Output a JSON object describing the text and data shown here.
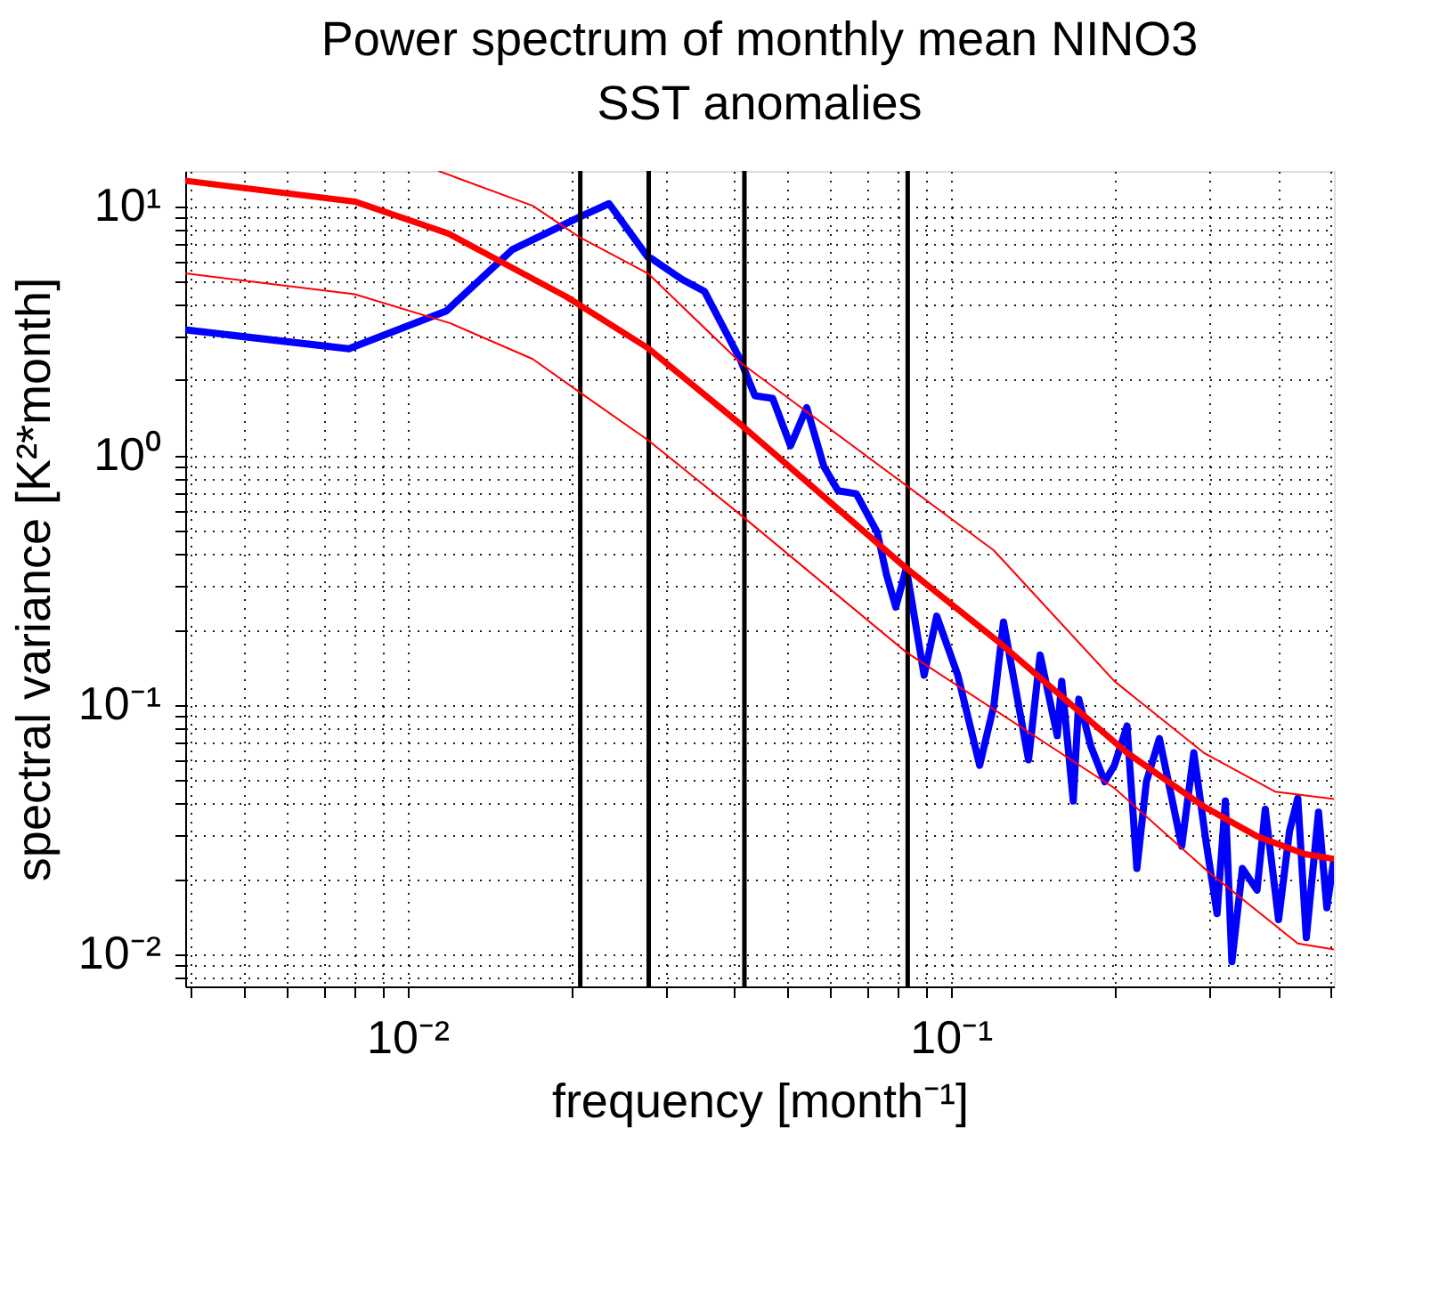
{
  "chart_data": {
    "type": "line",
    "title": "Power spectrum of monthly mean NINO3\nSST anomalies",
    "xlabel": "frequency [month⁻¹]",
    "ylabel": "spectral variance [K²*month]",
    "log": "xy",
    "grid": true,
    "line_style": "solid",
    "xlim": [
      0.0039,
      0.507
    ],
    "ylim": [
      0.0074,
      13.8
    ],
    "xticks": [
      {
        "value": 0.004,
        "label": null
      },
      {
        "value": 0.005,
        "label": null
      },
      {
        "value": 0.006,
        "label": null
      },
      {
        "value": 0.007,
        "label": null
      },
      {
        "value": 0.008,
        "label": null
      },
      {
        "value": 0.009,
        "label": null
      },
      {
        "value": 0.01,
        "label": "10⁻²"
      },
      {
        "value": 0.02,
        "label": null
      },
      {
        "value": 0.03,
        "label": null
      },
      {
        "value": 0.04,
        "label": null
      },
      {
        "value": 0.05,
        "label": null
      },
      {
        "value": 0.06,
        "label": null
      },
      {
        "value": 0.07,
        "label": null
      },
      {
        "value": 0.08,
        "label": null
      },
      {
        "value": 0.09,
        "label": null
      },
      {
        "value": 0.1,
        "label": "10⁻¹"
      },
      {
        "value": 0.2,
        "label": null
      },
      {
        "value": 0.3,
        "label": null
      },
      {
        "value": 0.4,
        "label": null
      },
      {
        "value": 0.5,
        "label": null
      }
    ],
    "yticks": [
      {
        "value": 0.008,
        "label": null
      },
      {
        "value": 0.009,
        "label": null
      },
      {
        "value": 0.01,
        "label": "10⁻²"
      },
      {
        "value": 0.02,
        "label": null
      },
      {
        "value": 0.03,
        "label": null
      },
      {
        "value": 0.04,
        "label": null
      },
      {
        "value": 0.05,
        "label": null
      },
      {
        "value": 0.06,
        "label": null
      },
      {
        "value": 0.07,
        "label": null
      },
      {
        "value": 0.08,
        "label": null
      },
      {
        "value": 0.09,
        "label": null
      },
      {
        "value": 0.1,
        "label": "10⁻¹"
      },
      {
        "value": 0.2,
        "label": null
      },
      {
        "value": 0.3,
        "label": null
      },
      {
        "value": 0.4,
        "label": null
      },
      {
        "value": 0.5,
        "label": null
      },
      {
        "value": 0.6,
        "label": null
      },
      {
        "value": 0.7,
        "label": null
      },
      {
        "value": 0.8,
        "label": null
      },
      {
        "value": 0.9,
        "label": null
      },
      {
        "value": 1,
        "label": "10⁰"
      },
      {
        "value": 2,
        "label": null
      },
      {
        "value": 3,
        "label": null
      },
      {
        "value": 4,
        "label": null
      },
      {
        "value": 5,
        "label": null
      },
      {
        "value": 6,
        "label": null
      },
      {
        "value": 7,
        "label": null
      },
      {
        "value": 8,
        "label": null
      },
      {
        "value": 9,
        "label": null
      },
      {
        "value": 10,
        "label": "10¹"
      }
    ],
    "ref_lines": [
      {
        "axis": "x",
        "value": 0.0208,
        "color": "#000000"
      },
      {
        "axis": "x",
        "value": 0.0278,
        "color": "#000000"
      },
      {
        "axis": "x",
        "value": 0.0417,
        "color": "#000000"
      },
      {
        "axis": "x",
        "value": 0.0833,
        "color": "#000000"
      }
    ],
    "series": [
      {
        "color": "#0000ff",
        "x": [
          0.0039,
          0.0078,
          0.0118,
          0.0156,
          0.0208,
          0.0235,
          0.0277,
          0.0281,
          0.032,
          0.0352,
          0.041,
          0.0436,
          0.047,
          0.0507,
          0.0543,
          0.0584,
          0.062,
          0.067,
          0.0732,
          0.0761,
          0.0792,
          0.0828,
          0.0893,
          0.0942,
          0.103,
          0.113,
          0.12,
          0.125,
          0.139,
          0.146,
          0.157,
          0.16,
          0.168,
          0.172,
          0.181,
          0.192,
          0.2,
          0.211,
          0.22,
          0.229,
          0.242,
          0.254,
          0.266,
          0.28,
          0.295,
          0.309,
          0.32,
          0.329,
          0.344,
          0.366,
          0.379,
          0.401,
          0.42,
          0.435,
          0.451,
          0.475,
          0.492,
          0.507
        ],
        "values": [
          3.18,
          2.67,
          3.79,
          6.67,
          9.04,
          10.2,
          6.22,
          6.15,
          5.07,
          4.54,
          2.41,
          1.73,
          1.69,
          1.09,
          1.55,
          0.9,
          0.72,
          0.7,
          0.49,
          0.333,
          0.246,
          0.352,
          0.131,
          0.226,
          0.131,
          0.057,
          0.099,
          0.214,
          0.06,
          0.158,
          0.075,
          0.124,
          0.041,
          0.105,
          0.068,
          0.049,
          0.057,
          0.082,
          0.022,
          0.049,
          0.073,
          0.044,
          0.027,
          0.064,
          0.028,
          0.0145,
          0.041,
          0.0093,
          0.022,
          0.018,
          0.038,
          0.0137,
          0.031,
          0.042,
          0.0116,
          0.037,
          0.0153,
          0.024
        ]
      },
      {
        "color": "#ff0000",
        "x": [
          0.0039,
          0.008,
          0.0119,
          0.0196,
          0.0277,
          0.041,
          0.0828,
          0.121,
          0.211,
          0.292,
          0.366,
          0.449,
          0.507
        ],
        "values": [
          12.6,
          10.4,
          7.74,
          4.32,
          2.69,
          1.33,
          0.352,
          0.182,
          0.064,
          0.039,
          0.0296,
          0.0251,
          0.024
        ]
      },
      {
        "color": "#ff0000",
        "x": [
          0.0114,
          0.017,
          0.0208,
          0.0277,
          0.041,
          0.12,
          0.2,
          0.292,
          0.395,
          0.507
        ],
        "values": [
          13.8,
          10.0,
          7.45,
          5.36,
          2.35,
          0.415,
          0.124,
          0.064,
          0.0447,
          0.0418
        ]
      },
      {
        "color": "#ff0000",
        "x": [
          0.0039,
          0.008,
          0.012,
          0.017,
          0.0208,
          0.0277,
          0.041,
          0.0828,
          0.2,
          0.298,
          0.435,
          0.507
        ],
        "values": [
          5.36,
          4.42,
          3.38,
          2.43,
          1.78,
          1.15,
          0.577,
          0.162,
          0.0462,
          0.0213,
          0.011,
          0.0104
        ]
      }
    ]
  }
}
